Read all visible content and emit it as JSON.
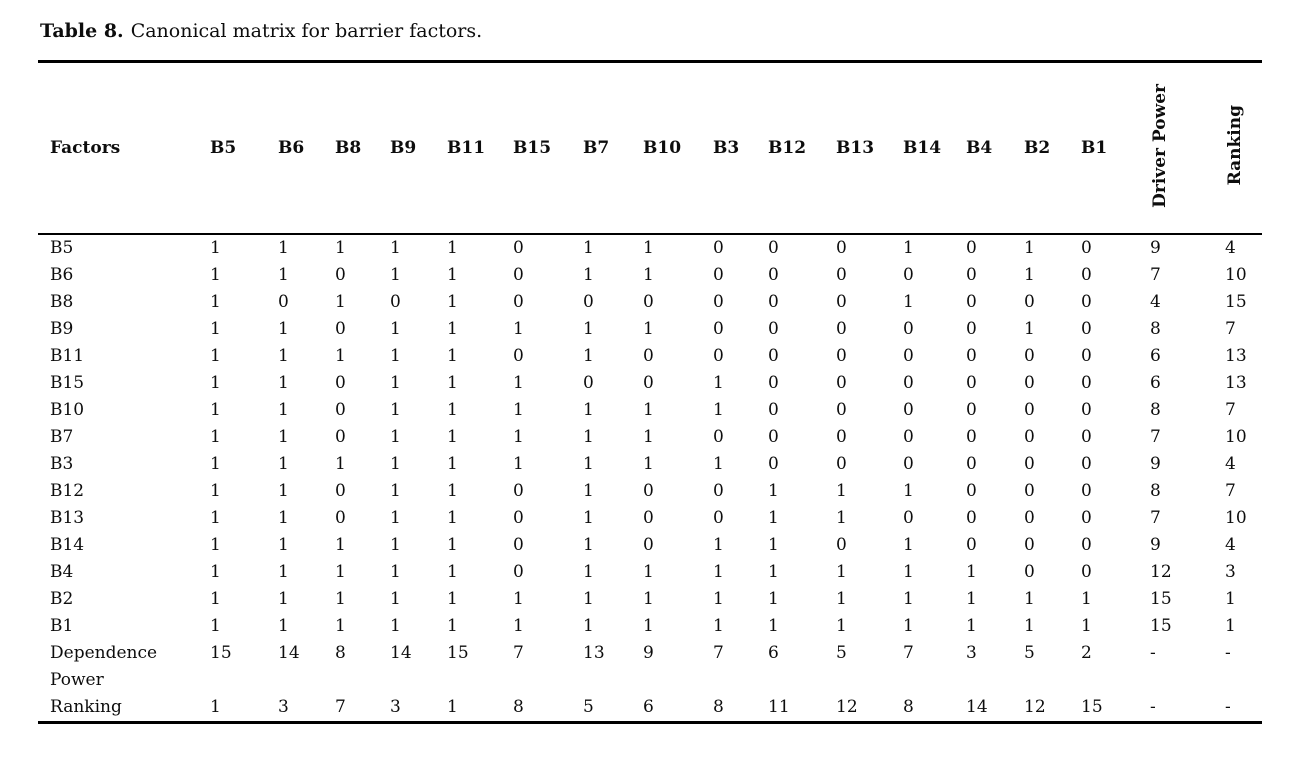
{
  "title": {
    "label": "Table 8.",
    "caption": "Canonical matrix for barrier factors."
  },
  "table": {
    "row_header": "Factors",
    "columns": [
      "B5",
      "B6",
      "B8",
      "B9",
      "B11",
      "B15",
      "B7",
      "B10",
      "B3",
      "B12",
      "B13",
      "B14",
      "B4",
      "B2",
      "B1"
    ],
    "rotated_columns": [
      "Driver Power",
      "Ranking"
    ],
    "rows": [
      {
        "factor": "B5",
        "values": [
          1,
          1,
          1,
          1,
          1,
          0,
          1,
          1,
          0,
          0,
          0,
          1,
          0,
          1,
          0
        ],
        "driver_power": "9",
        "ranking": "4"
      },
      {
        "factor": "B6",
        "values": [
          1,
          1,
          0,
          1,
          1,
          0,
          1,
          1,
          0,
          0,
          0,
          0,
          0,
          1,
          0
        ],
        "driver_power": "7",
        "ranking": "10"
      },
      {
        "factor": "B8",
        "values": [
          1,
          0,
          1,
          0,
          1,
          0,
          0,
          0,
          0,
          0,
          0,
          1,
          0,
          0,
          0
        ],
        "driver_power": "4",
        "ranking": "15"
      },
      {
        "factor": "B9",
        "values": [
          1,
          1,
          0,
          1,
          1,
          1,
          1,
          1,
          0,
          0,
          0,
          0,
          0,
          1,
          0
        ],
        "driver_power": "8",
        "ranking": "7"
      },
      {
        "factor": "B11",
        "values": [
          1,
          1,
          1,
          1,
          1,
          0,
          1,
          0,
          0,
          0,
          0,
          0,
          0,
          0,
          0
        ],
        "driver_power": "6",
        "ranking": "13"
      },
      {
        "factor": "B15",
        "values": [
          1,
          1,
          0,
          1,
          1,
          1,
          0,
          0,
          1,
          0,
          0,
          0,
          0,
          0,
          0
        ],
        "driver_power": "6",
        "ranking": "13"
      },
      {
        "factor": "B10",
        "values": [
          1,
          1,
          0,
          1,
          1,
          1,
          1,
          1,
          1,
          0,
          0,
          0,
          0,
          0,
          0
        ],
        "driver_power": "8",
        "ranking": "7"
      },
      {
        "factor": "B7",
        "values": [
          1,
          1,
          0,
          1,
          1,
          1,
          1,
          1,
          0,
          0,
          0,
          0,
          0,
          0,
          0
        ],
        "driver_power": "7",
        "ranking": "10"
      },
      {
        "factor": "B3",
        "values": [
          1,
          1,
          1,
          1,
          1,
          1,
          1,
          1,
          1,
          0,
          0,
          0,
          0,
          0,
          0
        ],
        "driver_power": "9",
        "ranking": "4"
      },
      {
        "factor": "B12",
        "values": [
          1,
          1,
          0,
          1,
          1,
          0,
          1,
          0,
          0,
          1,
          1,
          1,
          0,
          0,
          0
        ],
        "driver_power": "8",
        "ranking": "7"
      },
      {
        "factor": "B13",
        "values": [
          1,
          1,
          0,
          1,
          1,
          0,
          1,
          0,
          0,
          1,
          1,
          0,
          0,
          0,
          0
        ],
        "driver_power": "7",
        "ranking": "10"
      },
      {
        "factor": "B14",
        "values": [
          1,
          1,
          1,
          1,
          1,
          0,
          1,
          0,
          1,
          1,
          0,
          1,
          0,
          0,
          0
        ],
        "driver_power": "9",
        "ranking": "4"
      },
      {
        "factor": "B4",
        "values": [
          1,
          1,
          1,
          1,
          1,
          0,
          1,
          1,
          1,
          1,
          1,
          1,
          1,
          0,
          0
        ],
        "driver_power": "12",
        "ranking": "3"
      },
      {
        "factor": "B2",
        "values": [
          1,
          1,
          1,
          1,
          1,
          1,
          1,
          1,
          1,
          1,
          1,
          1,
          1,
          1,
          1
        ],
        "driver_power": "15",
        "ranking": "1"
      },
      {
        "factor": "B1",
        "values": [
          1,
          1,
          1,
          1,
          1,
          1,
          1,
          1,
          1,
          1,
          1,
          1,
          1,
          1,
          1
        ],
        "driver_power": "15",
        "ranking": "1"
      }
    ],
    "footer_rows": [
      {
        "label": "Dependence Power",
        "values": [
          15,
          14,
          8,
          14,
          15,
          7,
          13,
          9,
          7,
          6,
          5,
          7,
          3,
          5,
          2
        ],
        "driver_power": "-",
        "ranking": "-"
      },
      {
        "label": "Ranking",
        "values": [
          1,
          3,
          7,
          3,
          1,
          8,
          5,
          6,
          8,
          11,
          12,
          8,
          14,
          12,
          15
        ],
        "driver_power": "-",
        "ranking": "-"
      }
    ]
  }
}
